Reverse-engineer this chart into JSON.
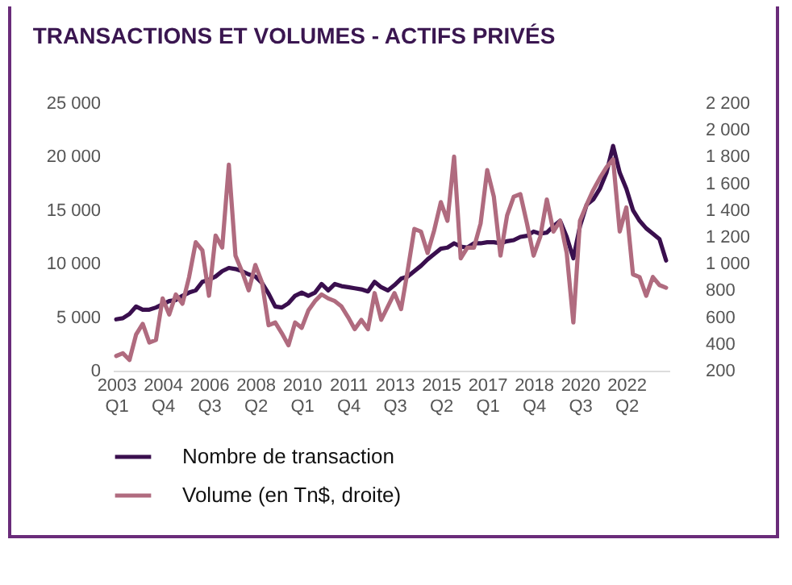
{
  "chart_data": {
    "type": "line",
    "title": "TRANSACTIONS ET VOLUMES - ACTIFS PRIVÉS",
    "categories": [
      "2003 Q1",
      null,
      null,
      null,
      null,
      null,
      null,
      "2004 Q4",
      null,
      null,
      null,
      null,
      null,
      null,
      "2006 Q3",
      null,
      null,
      null,
      null,
      null,
      null,
      "2008 Q2",
      null,
      null,
      null,
      null,
      null,
      null,
      "2010 Q1",
      null,
      null,
      null,
      null,
      null,
      null,
      "2011 Q4",
      null,
      null,
      null,
      null,
      null,
      null,
      "2013 Q3",
      null,
      null,
      null,
      null,
      null,
      null,
      "2015 Q2",
      null,
      null,
      null,
      null,
      null,
      null,
      "2017 Q1",
      null,
      null,
      null,
      null,
      null,
      null,
      "2018 Q4",
      null,
      null,
      null,
      null,
      null,
      null,
      "2020 Q3",
      null,
      null,
      null,
      null,
      null,
      null,
      "2022 Q2",
      null,
      null,
      null,
      null,
      null,
      null
    ],
    "series": [
      {
        "name": "Nombre de transaction",
        "color": "#3a0f4e",
        "values": [
          4800,
          4900,
          5300,
          6000,
          5700,
          5700,
          5900,
          6200,
          6500,
          6600,
          7000,
          7300,
          7500,
          8300,
          8500,
          8800,
          9300,
          9600,
          9500,
          9300,
          9000,
          8800,
          8200,
          7200,
          6000,
          5900,
          6300,
          7000,
          7300,
          7000,
          7300,
          8100,
          7500,
          8100,
          7900,
          7800,
          7700,
          7600,
          7400,
          8300,
          7800,
          7500,
          8000,
          8600,
          8800,
          9300,
          9800,
          10400,
          10900,
          11400,
          11500,
          11900,
          11600,
          11500,
          11900,
          11900,
          12000,
          12000,
          11900,
          12100,
          12200,
          12500,
          12600,
          13000,
          12800,
          12900,
          13500,
          14000,
          12500,
          10500,
          13500,
          15500,
          16000,
          17000,
          18500,
          21000,
          18500,
          17000,
          15000,
          14000,
          13300,
          12800,
          12300,
          10300
        ]
      },
      {
        "name": "Volume (en Tn$, droite)",
        "color": "#b06b7f",
        "axis": "y2",
        "values": [
          310,
          330,
          280,
          470,
          550,
          410,
          430,
          740,
          620,
          770,
          700,
          900,
          1160,
          1100,
          760,
          1210,
          1120,
          1740,
          1060,
          940,
          800,
          990,
          860,
          540,
          560,
          480,
          390,
          560,
          520,
          650,
          720,
          770,
          740,
          720,
          680,
          600,
          510,
          580,
          510,
          780,
          580,
          680,
          780,
          660,
          950,
          1260,
          1240,
          1080,
          1250,
          1460,
          1320,
          1800,
          1040,
          1120,
          1120,
          1300,
          1700,
          1500,
          1060,
          1360,
          1500,
          1520,
          1300,
          1060,
          1200,
          1480,
          1240,
          1320,
          1080,
          560,
          1320,
          1440,
          1550,
          1640,
          1720,
          1780,
          1240,
          1420,
          920,
          900,
          760,
          900,
          840,
          820
        ]
      }
    ],
    "ylim": [
      0,
      25000
    ],
    "yticks": [
      0,
      {
        "value": 5000,
        "label": "5 000"
      },
      {
        "value": 10000,
        "label": "10 000"
      },
      {
        "value": 15000,
        "label": "15 000"
      },
      {
        "value": 20000,
        "label": "20 000"
      },
      {
        "value": 25000,
        "label": "25 000"
      }
    ],
    "y2lim": [
      200,
      2200
    ],
    "y2ticks": [
      200,
      400,
      600,
      800,
      {
        "value": 1000,
        "label": "1 000"
      },
      {
        "value": 1200,
        "label": "1 200"
      },
      {
        "value": 1400,
        "label": "1 400"
      },
      {
        "value": 1600,
        "label": "1 600"
      },
      {
        "value": 1800,
        "label": "1 800"
      },
      {
        "value": 2000,
        "label": "2 000"
      },
      {
        "value": 2200,
        "label": "2 200"
      }
    ],
    "legend": "bottom"
  }
}
